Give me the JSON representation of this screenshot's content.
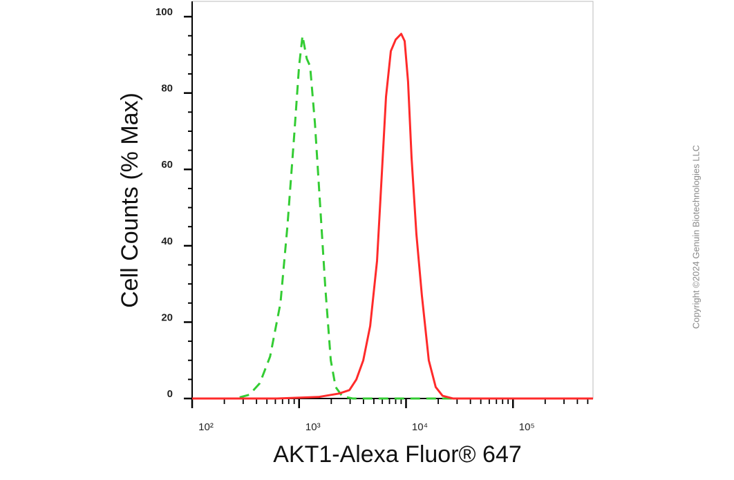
{
  "chart_data": {
    "type": "line",
    "x_label": "AKT1-Alexa Fluor® 647",
    "y_label": "Cell Counts (% Max)",
    "copyright": "Copyright ©2024 Genuin Biotechnologies LLC",
    "xscale": "log",
    "xlim": [
      100,
      560000
    ],
    "ylim": [
      0,
      104
    ],
    "xticks": [
      {
        "value": 100,
        "label": "10²"
      },
      {
        "value": 1000,
        "label": "10³"
      },
      {
        "value": 10000,
        "label": "10⁴"
      },
      {
        "value": 100000,
        "label": "10⁵"
      }
    ],
    "yticks": [
      0,
      20,
      40,
      60,
      80,
      100
    ],
    "series": [
      {
        "color": "#33cc33",
        "dash": true,
        "x": [
          100,
          255,
          343,
          429,
          536,
          670,
          777,
          901,
          1000,
          1077,
          1178,
          1268,
          1407,
          1562,
          1759,
          1980,
          2197,
          2547,
          3184,
          560000
        ],
        "values": [
          0,
          0,
          1,
          4,
          11,
          25,
          45,
          69,
          87,
          95,
          89,
          87,
          72,
          52,
          29,
          10,
          3,
          0.5,
          0,
          0
        ]
      },
      {
        "color": "#ff2a2a",
        "dash": false,
        "x": [
          100,
          622,
          1517,
          2366,
          2958,
          3431,
          3981,
          4620,
          5358,
          5943,
          6501,
          7209,
          8000,
          9016,
          9705,
          10450,
          11270,
          12500,
          14070,
          16320,
          18930,
          21960,
          27470,
          560000
        ],
        "values": [
          0,
          0,
          0.4,
          1.3,
          2.2,
          5,
          10,
          19,
          36,
          59,
          79,
          91,
          94,
          95.5,
          93.6,
          83,
          63,
          43,
          27,
          10,
          3,
          0.7,
          0,
          0
        ]
      }
    ]
  }
}
